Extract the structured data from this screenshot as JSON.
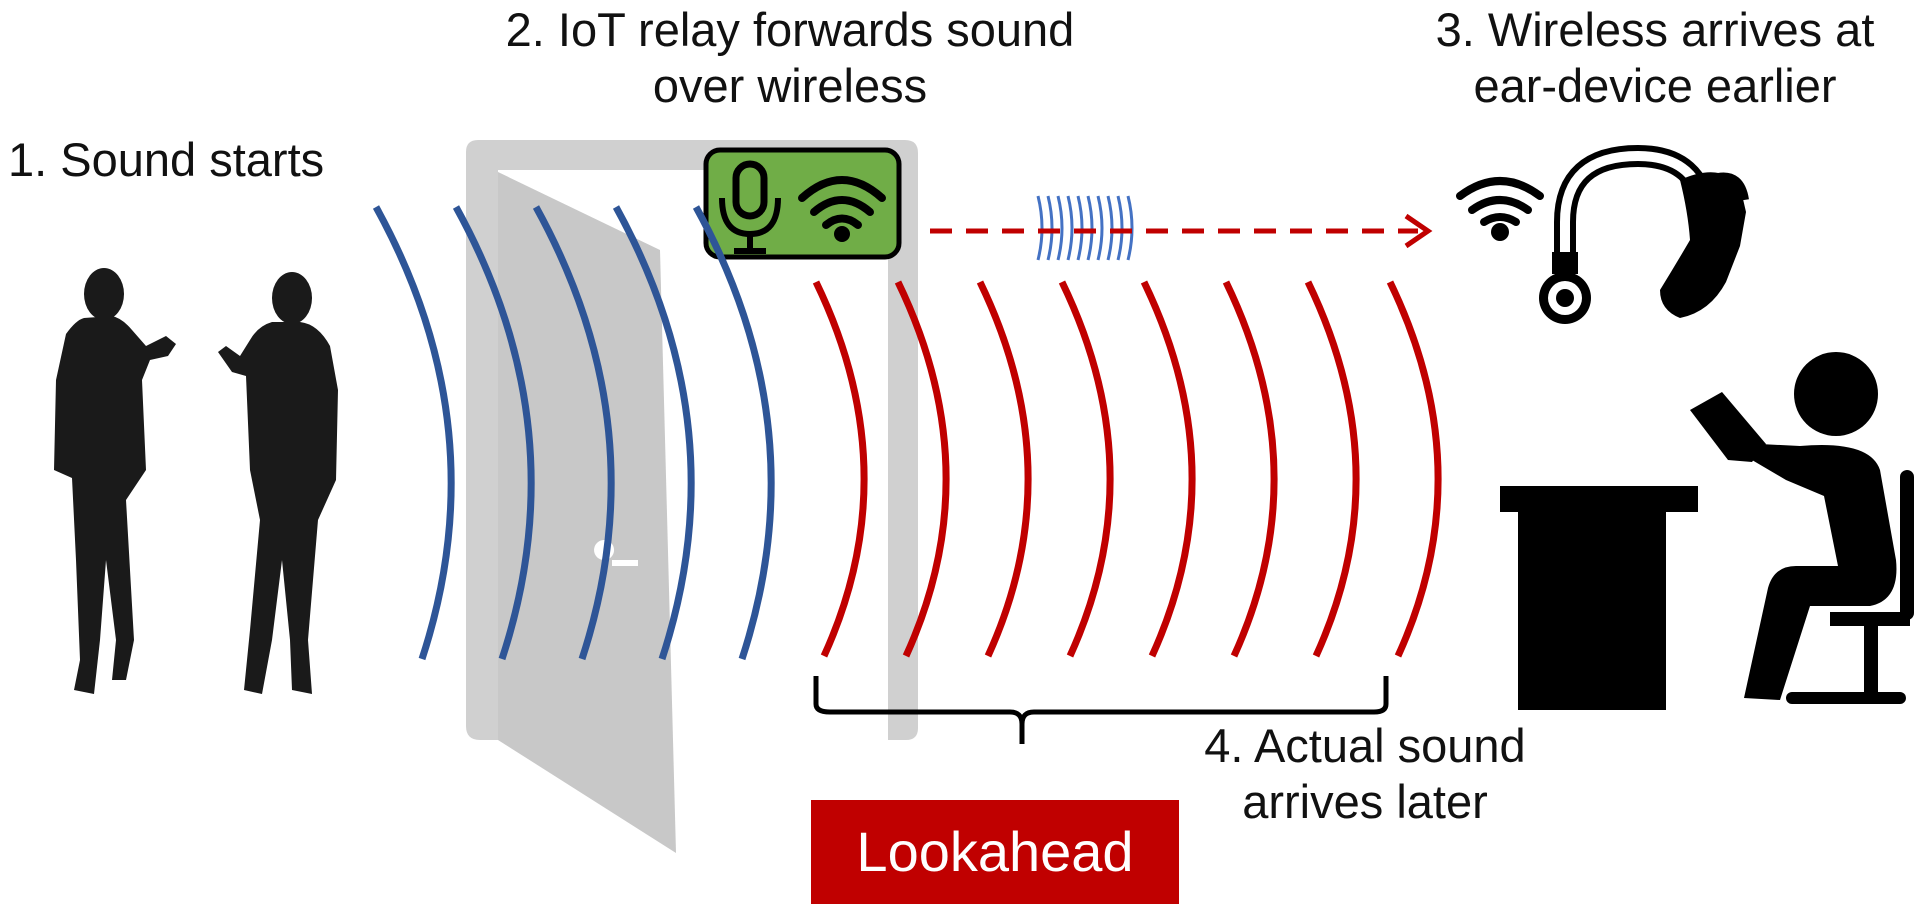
{
  "labels": {
    "step1": "1. Sound starts",
    "step2_line1": "2. IoT relay forwards sound",
    "step2_line2": "over wireless",
    "step3_line1": "3. Wireless arrives at",
    "step3_line2": "ear-device earlier",
    "step4_line1": "4. Actual sound",
    "step4_line2": "arrives later",
    "lookahead": "Lookahead"
  },
  "colors": {
    "wireless_wave": "#2e5597",
    "acoustic_wave": "#c00000",
    "relay_fill": "#70ad47",
    "lookahead_fill": "#c00000",
    "door": "#d0d0d0",
    "silhouette": "#1a1a1a",
    "icon": "#000000"
  },
  "icons": {
    "relay_microphone": "microphone-icon",
    "relay_wireless": "wifi-icon",
    "ear_device_wireless": "wifi-icon",
    "ear_device": "headphones-icon",
    "listener": "person-at-desk-icon",
    "speakers": "talking-people-icon",
    "door": "door-icon"
  }
}
